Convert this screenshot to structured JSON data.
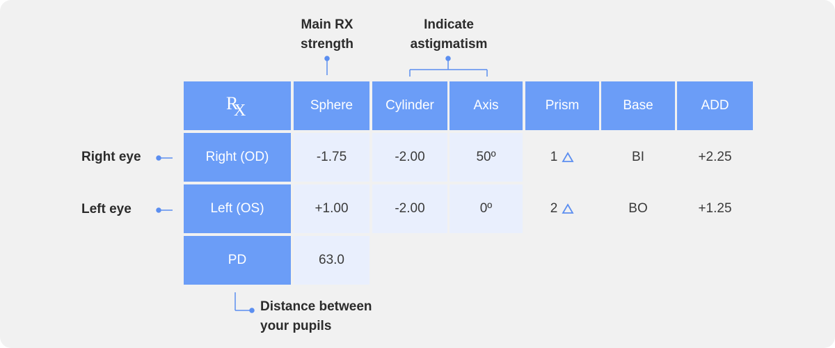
{
  "annotations": {
    "main_rx": "Main RX strength",
    "main_rx_l1": "Main RX",
    "main_rx_l2": "strength",
    "astig_l1": "Indicate",
    "astig_l2": "astigmatism",
    "right_eye": "Right eye",
    "left_eye": "Left eye",
    "pd_l1": "Distance between",
    "pd_l2": "your pupils"
  },
  "table": {
    "rx_symbol_r": "R",
    "rx_symbol_x": "X",
    "headers": [
      "Sphere",
      "Cylinder",
      "Axis",
      "Prism",
      "Base",
      "ADD"
    ],
    "rows": [
      {
        "label": "Right (OD)",
        "sphere": "-1.75",
        "cylinder": "-2.00",
        "axis": "50º",
        "prism": "1",
        "base": "BI",
        "add": "+2.25"
      },
      {
        "label": "Left (OS)",
        "sphere": "+1.00",
        "cylinder": "-2.00",
        "axis": "0º",
        "prism": "2",
        "base": "BO",
        "add": "+1.25"
      }
    ],
    "pd": {
      "label": "PD",
      "value": "63.0"
    }
  },
  "colors": {
    "header": "#6b9df7",
    "value_cell": "#e9effd",
    "background": "#f1f1f1",
    "accent": "#5b8ef0"
  }
}
